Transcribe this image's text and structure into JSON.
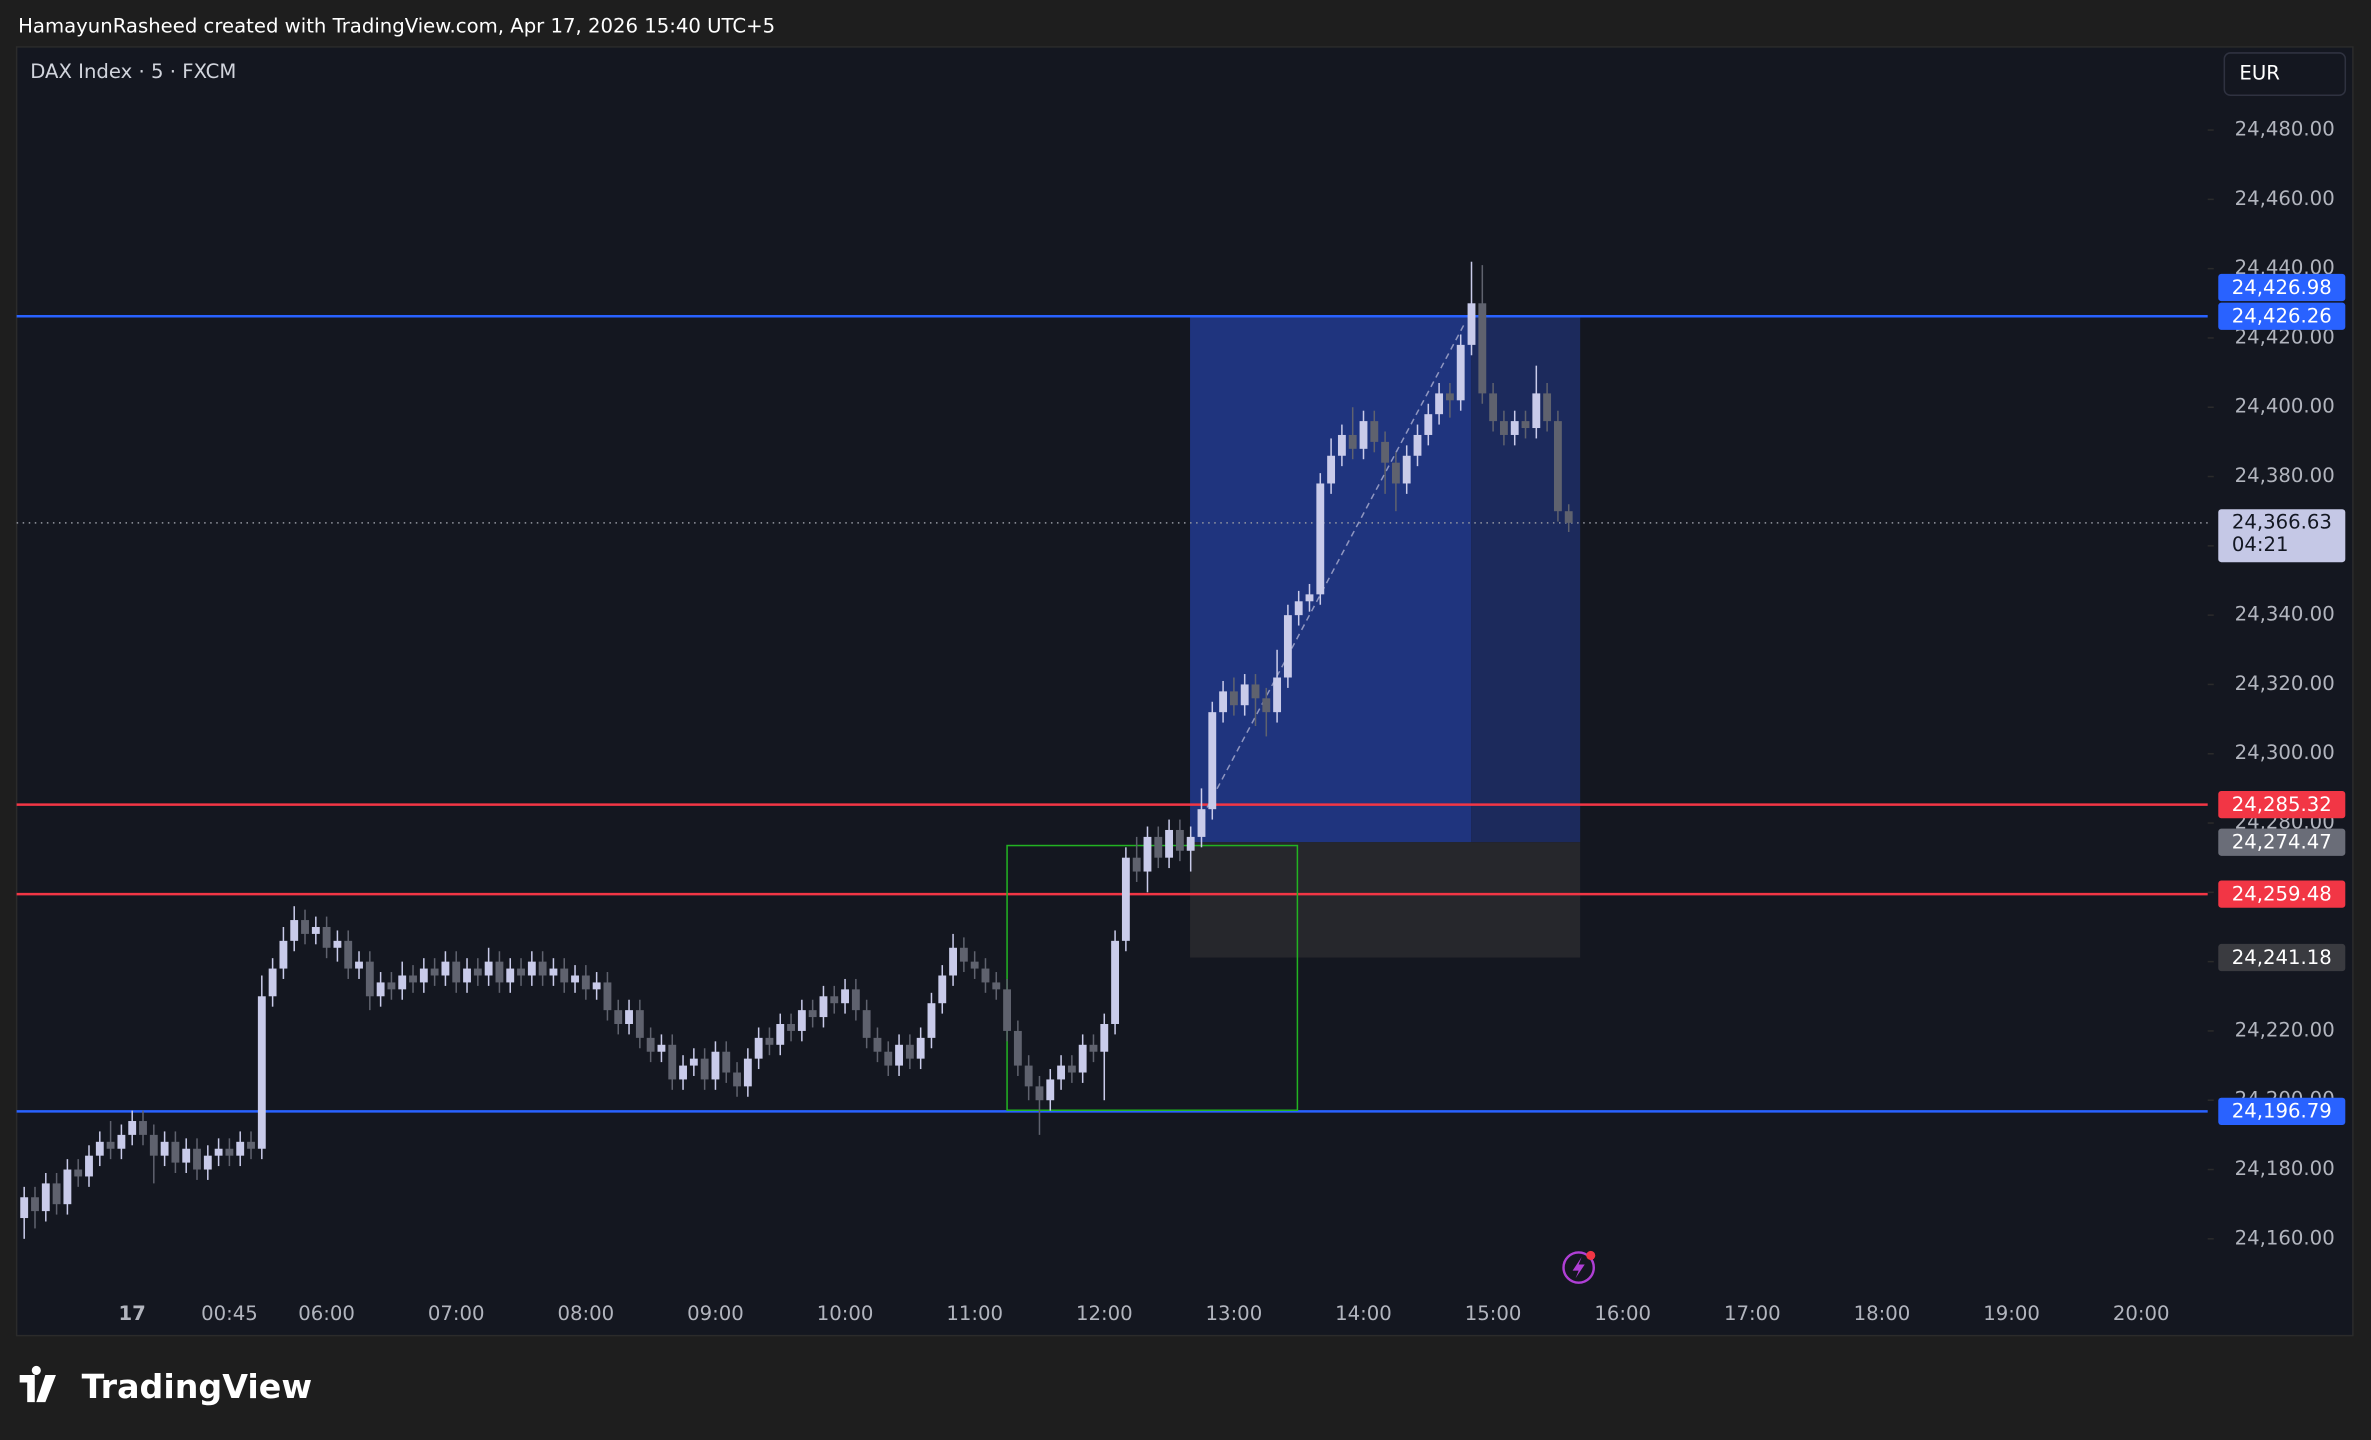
{
  "header": {
    "text": "HamayunRasheed created with TradingView.com, Apr 17, 2026 15:40 UTC+5"
  },
  "footer": {
    "brand": "TradingView"
  },
  "chart_data": {
    "type": "candlestick",
    "title": "DAX Index · 5 · FXCM",
    "currency": "EUR",
    "categories": [
      null,
      null,
      null,
      null,
      null,
      null,
      null,
      null,
      null,
      null,
      "17",
      null,
      null,
      null,
      null,
      null,
      null,
      null,
      null,
      "00:45",
      null,
      null,
      null,
      null,
      null,
      null,
      null,
      null,
      "06:00",
      null,
      null,
      null,
      null,
      null,
      null,
      null,
      null,
      null,
      null,
      null,
      "07:00",
      null,
      null,
      null,
      null,
      null,
      null,
      null,
      null,
      null,
      null,
      null,
      "08:00",
      null,
      null,
      null,
      null,
      null,
      null,
      null,
      null,
      null,
      null,
      null,
      "09:00",
      null,
      null,
      null,
      null,
      null,
      null,
      null,
      null,
      null,
      null,
      null,
      "10:00",
      null,
      null,
      null,
      null,
      null,
      null,
      null,
      null,
      null,
      null,
      null,
      "11:00",
      null,
      null,
      null,
      null,
      null,
      null,
      null,
      null,
      null,
      null,
      null,
      "12:00",
      null,
      null,
      null,
      null,
      null,
      null,
      null,
      null,
      null,
      null,
      null,
      "13:00",
      null,
      null,
      null,
      null,
      null,
      null,
      null,
      null,
      null,
      null,
      null,
      "14:00",
      null,
      null,
      null,
      null,
      null,
      null,
      null,
      null,
      null,
      null,
      null,
      "15:00",
      null,
      null,
      null,
      null,
      null,
      null,
      null,
      null,
      null,
      null,
      null,
      "16:00",
      null,
      null,
      null,
      null,
      null,
      null,
      null,
      null,
      null,
      null,
      null,
      "17:00",
      null,
      null,
      null,
      null,
      null,
      null,
      null,
      null,
      null,
      null,
      null,
      "18:00",
      null,
      null,
      null,
      null,
      null,
      null,
      null,
      null,
      null,
      null,
      null,
      "19:00",
      null,
      null,
      null,
      null,
      null,
      null,
      null,
      null,
      null,
      null,
      null,
      "20:00"
    ],
    "open": [
      24166,
      24172,
      24168,
      24176,
      24170,
      24180,
      24178,
      24184,
      24188,
      24186,
      24190,
      24194,
      24190,
      24184,
      24188,
      24182,
      24186,
      24180,
      24184,
      24186,
      24184,
      24188,
      24186,
      24230,
      24238,
      24246,
      24252,
      24248,
      24250,
      24244,
      24246,
      24238,
      24240,
      24230,
      24234,
      24232,
      24236,
      24234,
      24238,
      24236,
      24240,
      24234,
      24238,
      24236,
      24240,
      24234,
      24238,
      24236,
      24240,
      24236,
      24238,
      24234,
      24236,
      24232,
      24234,
      24226,
      24222,
      24226,
      24218,
      24214,
      24216,
      24206,
      24210,
      24212,
      24206,
      24214,
      24208,
      24204,
      24212,
      24218,
      24216,
      24222,
      24220,
      24226,
      24224,
      24230,
      24228,
      24232,
      24226,
      24218,
      24214,
      24210,
      24216,
      24212,
      24218,
      24228,
      24236,
      24244,
      24240,
      24238,
      24234,
      24232,
      24220,
      24210,
      24204,
      24200,
      24206,
      24210,
      24208,
      24216,
      24214,
      24222,
      24246,
      24270,
      24266,
      24276,
      24270,
      24278,
      24272,
      24276,
      24284,
      24312,
      24318,
      24314,
      24320,
      24316,
      24312,
      24322,
      24340,
      24344,
      24346,
      24378,
      24386,
      24392,
      24388,
      24396,
      24390,
      24384,
      24378,
      24386,
      24392,
      24398,
      24404,
      24402,
      24418,
      24430,
      24404,
      24396,
      24392,
      24396,
      24394,
      24404,
      24396,
      24370,
      null,
      null,
      null,
      null,
      null,
      null,
      null,
      null,
      null,
      null,
      null,
      null,
      null,
      null,
      null,
      null,
      null,
      null,
      null,
      null,
      null,
      null,
      null,
      null,
      null,
      null,
      null,
      null,
      null,
      null,
      null,
      null,
      null,
      null,
      null,
      null,
      null,
      null,
      null,
      null,
      null,
      null,
      null,
      null,
      null,
      null,
      null,
      null,
      null,
      null,
      null,
      null,
      null
    ],
    "high": [
      24175,
      24175,
      24179,
      24179,
      24183,
      24183,
      24187,
      24191,
      24194,
      24193,
      24197,
      24197,
      24193,
      24191,
      24191,
      24189,
      24189,
      24187,
      24189,
      24189,
      24191,
      24191,
      24236,
      24241,
      24250,
      24256,
      24255,
      24253,
      24253,
      24249,
      24249,
      24243,
      24243,
      24237,
      24237,
      24240,
      24239,
      24241,
      24241,
      24243,
      24243,
      24241,
      24241,
      24244,
      24243,
      24241,
      24241,
      24243,
      24243,
      24241,
      24241,
      24239,
      24239,
      24237,
      24237,
      24229,
      24229,
      24229,
      24221,
      24219,
      24219,
      24213,
      24215,
      24215,
      24217,
      24217,
      24211,
      24215,
      24221,
      24221,
      24225,
      24225,
      24229,
      24229,
      24233,
      24233,
      24235,
      24235,
      24229,
      24221,
      24217,
      24219,
      24219,
      24221,
      24231,
      24239,
      24248,
      24247,
      24243,
      24241,
      24237,
      24235,
      24223,
      24213,
      24207,
      24209,
      24213,
      24213,
      24219,
      24219,
      24225,
      24249,
      24273,
      24276,
      24279,
      24279,
      24281,
      24281,
      24279,
      24290,
      24315,
      24321,
      24322,
      24323,
      24323,
      24319,
      24330,
      24343,
      24347,
      24349,
      24381,
      24391,
      24395,
      24400,
      24399,
      24399,
      24393,
      24387,
      24389,
      24395,
      24401,
      24407,
      24407,
      24421,
      24442,
      24441,
      24407,
      24399,
      24399,
      24399,
      24412,
      24407,
      24399,
      24372,
      null,
      null,
      null,
      null,
      null,
      null,
      null,
      null,
      null,
      null,
      null,
      null,
      null,
      null,
      null,
      null,
      null,
      null,
      null,
      null,
      null,
      null,
      null,
      null,
      null,
      null,
      null,
      null,
      null,
      null,
      null,
      null,
      null,
      null,
      null,
      null,
      null,
      null,
      null,
      null,
      null,
      null,
      null,
      null,
      null,
      null,
      null,
      null,
      null,
      null,
      null,
      null,
      null
    ],
    "low": [
      24160,
      24163,
      24165,
      24167,
      24167,
      24175,
      24175,
      24181,
      24183,
      24183,
      24187,
      24187,
      24176,
      24181,
      24179,
      24179,
      24177,
      24177,
      24181,
      24181,
      24181,
      24183,
      24183,
      24227,
      24235,
      24243,
      24245,
      24245,
      24241,
      24240,
      24235,
      24235,
      24226,
      24227,
      24229,
      24229,
      24231,
      24231,
      24233,
      24233,
      24231,
      24231,
      24233,
      24233,
      24231,
      24231,
      24233,
      24233,
      24233,
      24233,
      24231,
      24231,
      24229,
      24229,
      24223,
      24219,
      24219,
      24215,
      24211,
      24211,
      24203,
      24203,
      24207,
      24203,
      24203,
      24205,
      24201,
      24201,
      24209,
      24213,
      24213,
      24217,
      24217,
      24221,
      24221,
      24225,
      24225,
      24223,
      24215,
      24211,
      24207,
      24207,
      24209,
      24209,
      24215,
      24225,
      24233,
      24237,
      24235,
      24231,
      24229,
      24217,
      24207,
      24200,
      24190,
      24197,
      24203,
      24205,
      24205,
      24211,
      24200,
      24219,
      24243,
      24263,
      24260,
      24267,
      24267,
      24269,
      24266,
      24273,
      24281,
      24309,
      24311,
      24311,
      24308,
      24305,
      24309,
      24319,
      24337,
      24341,
      24343,
      24375,
      24383,
      24385,
      24385,
      24387,
      24375,
      24370,
      24375,
      24383,
      24389,
      24395,
      24397,
      24399,
      24415,
      24401,
      24393,
      24389,
      24389,
      24391,
      24391,
      24393,
      24367,
      24364,
      null,
      null,
      null,
      null,
      null,
      null,
      null,
      null,
      null,
      null,
      null,
      null,
      null,
      null,
      null,
      null,
      null,
      null,
      null,
      null,
      null,
      null,
      null,
      null,
      null,
      null,
      null,
      null,
      null,
      null,
      null,
      null,
      null,
      null,
      null,
      null,
      null,
      null,
      null,
      null,
      null,
      null,
      null,
      null,
      null,
      null,
      null,
      null,
      null,
      null,
      null,
      null,
      null
    ],
    "close": [
      24172,
      24168,
      24176,
      24170,
      24180,
      24178,
      24184,
      24188,
      24186,
      24190,
      24194,
      24190,
      24184,
      24188,
      24182,
      24186,
      24180,
      24184,
      24186,
      24184,
      24188,
      24186,
      24230,
      24238,
      24246,
      24252,
      24248,
      24250,
      24244,
      24246,
      24238,
      24240,
      24230,
      24234,
      24232,
      24236,
      24234,
      24238,
      24236,
      24240,
      24234,
      24238,
      24236,
      24240,
      24234,
      24238,
      24236,
      24240,
      24236,
      24238,
      24234,
      24236,
      24232,
      24234,
      24226,
      24222,
      24226,
      24218,
      24214,
      24216,
      24206,
      24210,
      24212,
      24206,
      24214,
      24208,
      24204,
      24212,
      24218,
      24216,
      24222,
      24220,
      24226,
      24224,
      24230,
      24228,
      24232,
      24226,
      24218,
      24214,
      24210,
      24216,
      24212,
      24218,
      24228,
      24236,
      24244,
      24240,
      24238,
      24234,
      24232,
      24220,
      24210,
      24204,
      24200,
      24206,
      24210,
      24208,
      24216,
      24214,
      24222,
      24246,
      24270,
      24266,
      24276,
      24270,
      24278,
      24272,
      24276,
      24284,
      24312,
      24318,
      24314,
      24320,
      24316,
      24312,
      24322,
      24340,
      24344,
      24346,
      24378,
      24386,
      24392,
      24388,
      24396,
      24390,
      24384,
      24378,
      24386,
      24392,
      24398,
      24404,
      24402,
      24418,
      24430,
      24404,
      24396,
      24392,
      24396,
      24394,
      24404,
      24396,
      24370,
      24366.63,
      null,
      null,
      null,
      null,
      null,
      null,
      null,
      null,
      null,
      null,
      null,
      null,
      null,
      null,
      null,
      null,
      null,
      null,
      null,
      null,
      null,
      null,
      null,
      null,
      null,
      null,
      null,
      null,
      null,
      null,
      null,
      null,
      null,
      null,
      null,
      null,
      null,
      null,
      null,
      null,
      null,
      null,
      null,
      null,
      null,
      null,
      null,
      null,
      null,
      null,
      null,
      null,
      null
    ],
    "up_color": "#c9cbea",
    "down_color": "#5f626e",
    "ylim": [
      24132.5,
      24504
    ],
    "yticks": [
      {
        "value": 24160,
        "label": "24,160.00"
      },
      {
        "value": 24180,
        "label": "24,180.00"
      },
      {
        "value": 24200,
        "label": "24,200.00"
      },
      {
        "value": 24220,
        "label": "24,220.00"
      },
      {
        "value": 24240,
        "label": "24,240.00"
      },
      {
        "value": 24260,
        "label": "24,260.00"
      },
      {
        "value": 24280,
        "label": "24,280.00"
      },
      {
        "value": 24300,
        "label": "24,300.00"
      },
      {
        "value": 24320,
        "label": "24,320.00"
      },
      {
        "value": 24340,
        "label": "24,340.00"
      },
      {
        "value": 24360,
        "label": "24,360.00"
      },
      {
        "value": 24380,
        "label": "24,380.00"
      },
      {
        "value": 24400,
        "label": "24,400.00"
      },
      {
        "value": 24420,
        "label": "24,420.00"
      },
      {
        "value": 24440,
        "label": "24,440.00"
      },
      {
        "value": 24460,
        "label": "24,460.00"
      },
      {
        "value": 24480,
        "label": "24,480.00"
      }
    ],
    "grid": false,
    "levels": [
      {
        "value": 24426.26,
        "label": "24,426.26",
        "color": "#2962ff"
      },
      {
        "value": 24285.32,
        "label": "24,285.32",
        "color": "#f23645"
      },
      {
        "value": 24259.48,
        "label": "24,259.48",
        "color": "#f23645"
      },
      {
        "value": 24196.79,
        "label": "24,196.79",
        "color": "#2962ff"
      }
    ],
    "price_tags": [
      {
        "value": 24426.98,
        "label": "24,426.98",
        "color": "#2962ff"
      },
      {
        "value": 24274.47,
        "label": "24,274.47",
        "color": "#6a6d78"
      },
      {
        "value": 24241.18,
        "label": "24,241.18",
        "color": "#3a3b40"
      }
    ],
    "last_price": {
      "value": 24366.63,
      "label": "24,366.63",
      "countdown": "04:21",
      "color": "#c5c8e6"
    },
    "position": {
      "target": 24426.26,
      "entry": 24274.47,
      "stop": 24241.18
    }
  }
}
